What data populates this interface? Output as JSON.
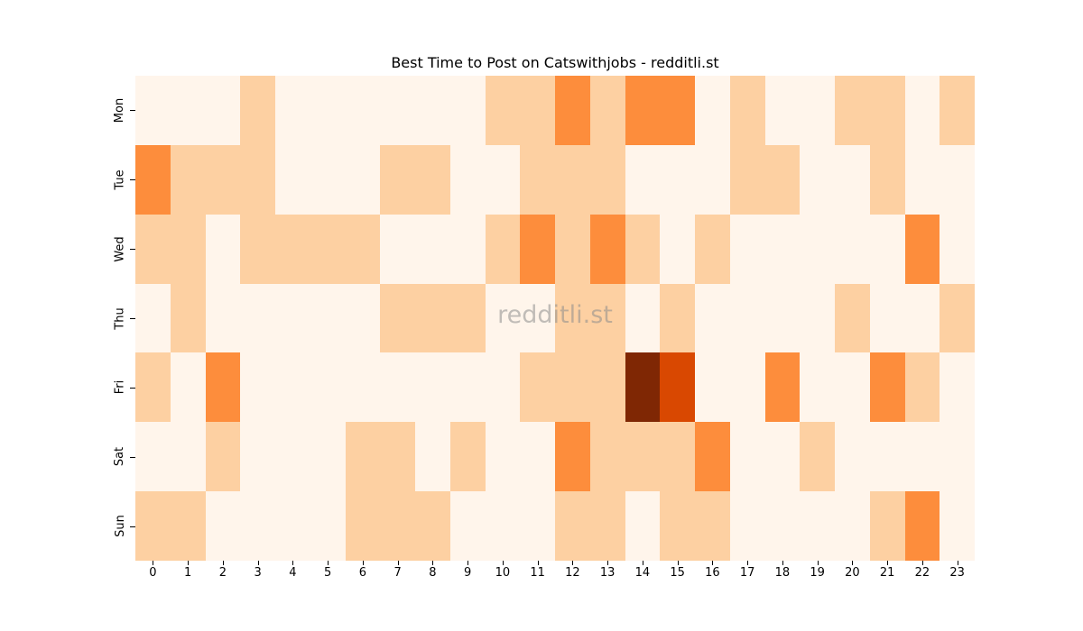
{
  "title": "Best Time to Post on Catswithjobs - redditli.st",
  "watermark": "redditli.st",
  "colors": [
    "#fff5eb",
    "#fdd0a2",
    "#fd8d3c",
    "#d94801",
    "#7f2704"
  ],
  "chart_data": {
    "type": "heatmap",
    "title": "Best Time to Post on Catswithjobs - redditli.st",
    "xlabel": "",
    "ylabel": "",
    "x": [
      "0",
      "1",
      "2",
      "3",
      "4",
      "5",
      "6",
      "7",
      "8",
      "9",
      "10",
      "11",
      "12",
      "13",
      "14",
      "15",
      "16",
      "17",
      "18",
      "19",
      "20",
      "21",
      "22",
      "23"
    ],
    "y": [
      "Mon",
      "Tue",
      "Wed",
      "Thu",
      "Fri",
      "Sat",
      "Sun"
    ],
    "colormap": "Oranges",
    "values": [
      [
        0,
        0,
        0,
        1,
        0,
        0,
        0,
        0,
        0,
        0,
        1,
        1,
        2,
        1,
        2,
        2,
        0,
        1,
        0,
        0,
        1,
        1,
        0,
        1
      ],
      [
        2,
        1,
        1,
        1,
        0,
        0,
        0,
        1,
        1,
        0,
        0,
        1,
        1,
        1,
        0,
        0,
        0,
        1,
        1,
        0,
        0,
        1,
        0,
        0
      ],
      [
        1,
        1,
        0,
        1,
        1,
        1,
        1,
        0,
        0,
        0,
        1,
        2,
        1,
        2,
        1,
        0,
        1,
        0,
        0,
        0,
        0,
        0,
        2,
        0
      ],
      [
        0,
        1,
        0,
        0,
        0,
        0,
        0,
        1,
        1,
        1,
        0,
        0,
        1,
        1,
        0,
        1,
        0,
        0,
        0,
        0,
        1,
        0,
        0,
        1
      ],
      [
        1,
        0,
        2,
        0,
        0,
        0,
        0,
        0,
        0,
        0,
        0,
        1,
        1,
        1,
        4,
        3,
        0,
        0,
        2,
        0,
        0,
        2,
        1,
        0
      ],
      [
        0,
        0,
        1,
        0,
        0,
        0,
        1,
        1,
        0,
        1,
        0,
        0,
        2,
        1,
        1,
        1,
        2,
        0,
        0,
        1,
        0,
        0,
        0,
        0
      ],
      [
        1,
        1,
        0,
        0,
        0,
        0,
        1,
        1,
        1,
        0,
        0,
        0,
        1,
        1,
        0,
        1,
        1,
        0,
        0,
        0,
        0,
        1,
        2,
        0
      ]
    ],
    "grid": false,
    "legend": "none"
  }
}
